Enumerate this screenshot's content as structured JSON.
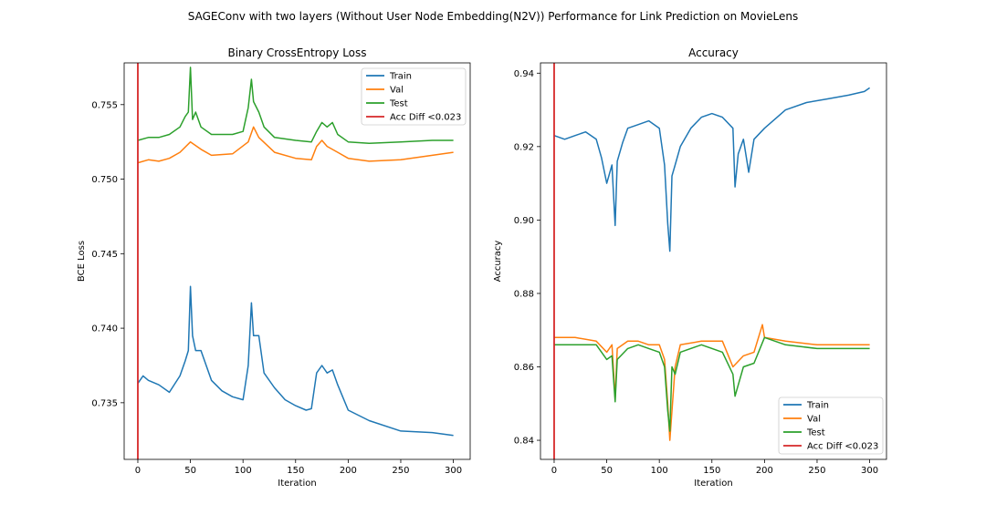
{
  "suptitle": "SAGEConv with two layers (Without User Node Embedding(N2V)) Performance for Link Prediction on MovieLens",
  "colors": {
    "train": "#1f77b4",
    "val": "#ff7f0e",
    "test": "#2ca02c",
    "marker": "#d62728"
  },
  "chart_data": [
    {
      "type": "line",
      "title": "Binary CrossEntropy Loss",
      "xlabel": "Iteration",
      "ylabel": "BCE Loss",
      "xlim": [
        -13,
        316
      ],
      "ylim": [
        0.7312,
        0.7578
      ],
      "xticks": [
        0,
        50,
        100,
        150,
        200,
        250,
        300
      ],
      "yticks": [
        0.735,
        0.74,
        0.745,
        0.75,
        0.755
      ],
      "ytick_labels": [
        "0.735",
        "0.740",
        "0.745",
        "0.750",
        "0.755"
      ],
      "legend": "upper right",
      "vline": {
        "x": 0,
        "label": "Acc Diff <0.023"
      },
      "series": [
        {
          "name": "Train",
          "key": "train",
          "x": [
            0,
            5,
            10,
            20,
            30,
            40,
            45,
            48,
            50,
            52,
            55,
            60,
            70,
            80,
            90,
            100,
            105,
            108,
            110,
            115,
            120,
            130,
            140,
            150,
            160,
            165,
            170,
            175,
            180,
            185,
            190,
            200,
            220,
            250,
            280,
            300
          ],
          "y": [
            0.7363,
            0.7368,
            0.7365,
            0.7362,
            0.7357,
            0.7368,
            0.7378,
            0.7385,
            0.7428,
            0.7395,
            0.7385,
            0.7385,
            0.7365,
            0.7358,
            0.7354,
            0.7352,
            0.7375,
            0.7417,
            0.7395,
            0.7395,
            0.737,
            0.736,
            0.7352,
            0.7348,
            0.7345,
            0.7346,
            0.737,
            0.7375,
            0.737,
            0.7372,
            0.7362,
            0.7345,
            0.7338,
            0.7331,
            0.733,
            0.7328
          ]
        },
        {
          "name": "Val",
          "key": "val",
          "x": [
            0,
            10,
            20,
            30,
            40,
            50,
            60,
            70,
            90,
            105,
            110,
            115,
            130,
            150,
            165,
            170,
            175,
            180,
            190,
            200,
            220,
            250,
            280,
            300
          ],
          "y": [
            0.7511,
            0.7513,
            0.7512,
            0.7514,
            0.7518,
            0.7525,
            0.752,
            0.7516,
            0.7517,
            0.7525,
            0.7535,
            0.7528,
            0.7518,
            0.7514,
            0.7513,
            0.7522,
            0.7526,
            0.7522,
            0.7518,
            0.7514,
            0.7512,
            0.7513,
            0.7516,
            0.7518
          ]
        },
        {
          "name": "Test",
          "key": "test",
          "x": [
            0,
            10,
            20,
            30,
            40,
            45,
            48,
            50,
            52,
            55,
            60,
            70,
            90,
            100,
            105,
            108,
            110,
            115,
            120,
            130,
            150,
            165,
            170,
            175,
            180,
            185,
            190,
            200,
            220,
            250,
            280,
            300
          ],
          "y": [
            0.7526,
            0.7528,
            0.7528,
            0.753,
            0.7535,
            0.7542,
            0.7545,
            0.7575,
            0.754,
            0.7545,
            0.7535,
            0.753,
            0.753,
            0.7532,
            0.7548,
            0.7567,
            0.7552,
            0.7545,
            0.7535,
            0.7528,
            0.7526,
            0.7525,
            0.7532,
            0.7538,
            0.7535,
            0.7538,
            0.753,
            0.7525,
            0.7524,
            0.7525,
            0.7526,
            0.7526
          ]
        }
      ]
    },
    {
      "type": "line",
      "title": "Accuracy",
      "xlabel": "Iteration",
      "ylabel": "Accuracy",
      "xlim": [
        -13,
        316
      ],
      "ylim": [
        0.8348,
        0.9428
      ],
      "xticks": [
        0,
        50,
        100,
        150,
        200,
        250,
        300
      ],
      "yticks": [
        0.84,
        0.86,
        0.88,
        0.9,
        0.92,
        0.94
      ],
      "ytick_labels": [
        "0.84",
        "0.86",
        "0.88",
        "0.90",
        "0.92",
        "0.94"
      ],
      "legend": "lower right",
      "vline": {
        "x": 0,
        "label": "Acc Diff <0.023"
      },
      "series": [
        {
          "name": "Train",
          "key": "train",
          "x": [
            0,
            10,
            20,
            30,
            40,
            45,
            50,
            55,
            58,
            60,
            65,
            70,
            80,
            90,
            100,
            105,
            108,
            110,
            112,
            115,
            120,
            130,
            140,
            150,
            160,
            170,
            172,
            175,
            180,
            185,
            190,
            200,
            220,
            240,
            260,
            280,
            295,
            300
          ],
          "y": [
            0.923,
            0.922,
            0.923,
            0.924,
            0.922,
            0.917,
            0.91,
            0.915,
            0.8985,
            0.916,
            0.921,
            0.925,
            0.926,
            0.927,
            0.925,
            0.915,
            0.899,
            0.8915,
            0.912,
            0.915,
            0.92,
            0.925,
            0.928,
            0.929,
            0.928,
            0.925,
            0.909,
            0.918,
            0.922,
            0.913,
            0.922,
            0.925,
            0.93,
            0.932,
            0.933,
            0.934,
            0.935,
            0.936
          ]
        },
        {
          "name": "Val",
          "key": "val",
          "x": [
            0,
            20,
            40,
            50,
            55,
            58,
            60,
            70,
            80,
            90,
            100,
            105,
            108,
            110,
            115,
            120,
            140,
            160,
            170,
            180,
            190,
            198,
            200,
            220,
            250,
            280,
            300
          ],
          "y": [
            0.868,
            0.868,
            0.867,
            0.864,
            0.866,
            0.8515,
            0.865,
            0.867,
            0.867,
            0.866,
            0.866,
            0.862,
            0.85,
            0.84,
            0.86,
            0.866,
            0.867,
            0.867,
            0.86,
            0.863,
            0.864,
            0.8715,
            0.868,
            0.867,
            0.866,
            0.866,
            0.866
          ]
        },
        {
          "name": "Test",
          "key": "test",
          "x": [
            0,
            20,
            40,
            50,
            55,
            58,
            60,
            70,
            80,
            90,
            100,
            105,
            108,
            110,
            112,
            115,
            120,
            140,
            160,
            170,
            172,
            180,
            190,
            200,
            220,
            250,
            280,
            300
          ],
          "y": [
            0.866,
            0.866,
            0.866,
            0.862,
            0.863,
            0.8505,
            0.862,
            0.865,
            0.866,
            0.865,
            0.864,
            0.86,
            0.848,
            0.8425,
            0.86,
            0.858,
            0.864,
            0.866,
            0.864,
            0.858,
            0.852,
            0.86,
            0.861,
            0.868,
            0.866,
            0.865,
            0.865,
            0.865
          ]
        }
      ]
    }
  ]
}
